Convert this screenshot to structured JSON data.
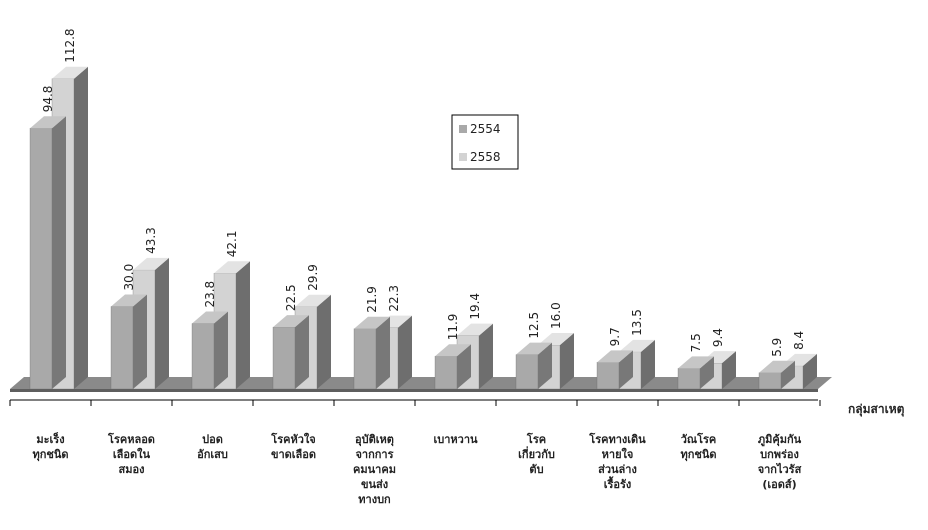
{
  "chart_data": {
    "type": "bar",
    "categories": [
      [
        "มะเร็ง",
        "ทุกชนิด"
      ],
      [
        "โรคหลอด",
        "เลือดใน",
        "สมอง"
      ],
      [
        "ปอด",
        "อักเสบ"
      ],
      [
        "โรคหัวใจ",
        "ขาดเลือด"
      ],
      [
        "อุบัติเหตุ",
        "จากการ",
        "คมนาคม",
        "ขนส่ง",
        "ทางบก"
      ],
      [
        "เบาหวาน"
      ],
      [
        "โรค",
        "เกี่ยวกับ",
        "ตับ"
      ],
      [
        "โรคทางเดิน",
        "หายใจ",
        "ส่วนล่าง",
        "เรื้อรัง"
      ],
      [
        "วัณโรค",
        "ทุกชนิด"
      ],
      [
        "ภูมิคุ้มกัน",
        "บกพร่อง",
        "จากไวรัส",
        "(เอดส์)"
      ]
    ],
    "series": [
      {
        "name": "2554",
        "values": [
          94.8,
          30.0,
          23.8,
          22.5,
          21.9,
          11.9,
          12.5,
          9.7,
          7.5,
          5.9
        ],
        "labels": [
          "94.8",
          "30.0",
          "23.8",
          "22.5",
          "21.9",
          "11.9",
          "12.5",
          "9.7",
          "7.5",
          "5.9"
        ]
      },
      {
        "name": "2558",
        "values": [
          112.8,
          43.3,
          42.1,
          29.9,
          22.3,
          19.4,
          16.0,
          13.5,
          9.4,
          8.4
        ],
        "labels": [
          "112.8",
          "43.3",
          "42.1",
          "29.9",
          "22.3",
          "19.4",
          "16.0",
          "13.5",
          "9.4",
          "8.4"
        ]
      }
    ],
    "xlabel": "กลุ่มสาเหตุ",
    "ylabel": "",
    "ylim": [
      0,
      120
    ],
    "grid": false,
    "legend_position": "center",
    "colors": {
      "2554": {
        "front": "#a9a9a9",
        "side": "#787878",
        "top": "#c6c6c6"
      },
      "2558": {
        "front": "#d3d3d3",
        "side": "#6e6e6e",
        "top": "#e3e3e3"
      },
      "floor": "#8a8a8a",
      "floor_front": "#5e5e5e"
    }
  }
}
